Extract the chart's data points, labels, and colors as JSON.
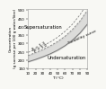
{
  "ylabel": "Concentration\n(g sucrose per 100 g water/litre)",
  "xlabel": "T (°C)",
  "ylim": [
    150,
    510
  ],
  "xlim": [
    10,
    90
  ],
  "xticks": [
    10,
    20,
    30,
    40,
    50,
    60,
    70,
    80,
    90
  ],
  "yticks": [
    150,
    200,
    250,
    300,
    350,
    400,
    450,
    500
  ],
  "solubility_temps": [
    10,
    20,
    30,
    40,
    50,
    60,
    70,
    80,
    90
  ],
  "solubility_conc": [
    190,
    204,
    220,
    238,
    260,
    287,
    320,
    362,
    415
  ],
  "beta12_conc": [
    228,
    245,
    264,
    286,
    312,
    344,
    384,
    434,
    498
  ],
  "beta13_conc": [
    247,
    265,
    286,
    309,
    338,
    373,
    416,
    471,
    540
  ],
  "label_supersaturation": "Supersaturation",
  "label_solubility": "Solubility curve",
  "label_undersaturation": "Undersaturation",
  "label_beta12": "β = 1.2",
  "label_beta13": "β = 1.3",
  "color_line": "#777777",
  "color_background": "#f8f8f4",
  "shade_color": "#bbbbbb",
  "fontsize_ylabel": 3.0,
  "fontsize_xlabel": 3.2,
  "fontsize_ticks": 3.0,
  "fontsize_annot": 3.8,
  "fontsize_beta": 3.2,
  "fontsize_solcurve": 3.2,
  "lw_solubility": 0.7,
  "lw_beta": 0.55
}
